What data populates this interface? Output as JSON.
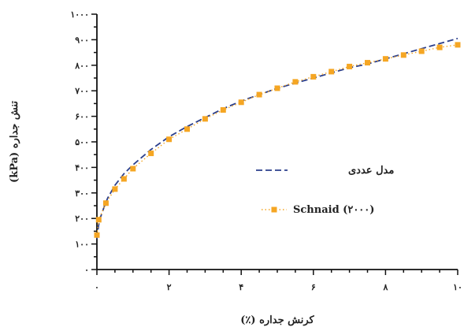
{
  "chart_data": {
    "type": "line",
    "xlabel": "کرنش جداره (٪)",
    "ylabel": "تنش جداره (kPa)",
    "xlim": [
      0,
      10
    ],
    "ylim": [
      0,
      1000
    ],
    "x_ticks": [
      0,
      2,
      4,
      6,
      8,
      10
    ],
    "x_tick_labels": [
      "۰",
      "۲",
      "۴",
      "۶",
      "۸",
      "۱۰"
    ],
    "y_ticks": [
      0,
      100,
      200,
      300,
      400,
      500,
      600,
      700,
      800,
      900,
      1000
    ],
    "y_tick_labels": [
      "۰",
      "۱۰۰",
      "۲۰۰",
      "۳۰۰",
      "۴۰۰",
      "۵۰۰",
      "۶۰۰",
      "۷۰۰",
      "۸۰۰",
      "۹۰۰",
      "۱۰۰۰"
    ],
    "grid": false,
    "legend_position": "center-right",
    "series": [
      {
        "name": "مدل عددی",
        "style": "dashed-line",
        "color": "#2b3f8c",
        "x": [
          0,
          0.05,
          0.1,
          0.2,
          0.3,
          0.5,
          0.75,
          1.0,
          1.5,
          2.0,
          2.5,
          3.0,
          3.5,
          4.0,
          4.5,
          5.0,
          5.5,
          6.0,
          6.5,
          7.0,
          7.5,
          8.0,
          8.5,
          9.0,
          9.5,
          10.0
        ],
        "y": [
          120,
          175,
          205,
          245,
          280,
          330,
          375,
          410,
          470,
          520,
          560,
          595,
          630,
          660,
          685,
          710,
          730,
          750,
          770,
          790,
          805,
          825,
          845,
          865,
          885,
          905
        ]
      },
      {
        "name": "Schnaid (۲۰۰۰)",
        "style": "dotted-markers",
        "color": "#f5a623",
        "marker_x": [
          0,
          0.05,
          0.25,
          0.5,
          0.75,
          1.0,
          1.5,
          2.0,
          2.5,
          3.0,
          3.5,
          4.0,
          4.5,
          5.0,
          5.5,
          6.0,
          6.5,
          7.0,
          7.5,
          8.0,
          8.5,
          9.0,
          9.5,
          10.0
        ],
        "marker_y": [
          135,
          195,
          260,
          315,
          355,
          395,
          455,
          510,
          550,
          590,
          625,
          655,
          685,
          710,
          735,
          755,
          775,
          795,
          810,
          825,
          840,
          855,
          870,
          880
        ]
      }
    ]
  }
}
